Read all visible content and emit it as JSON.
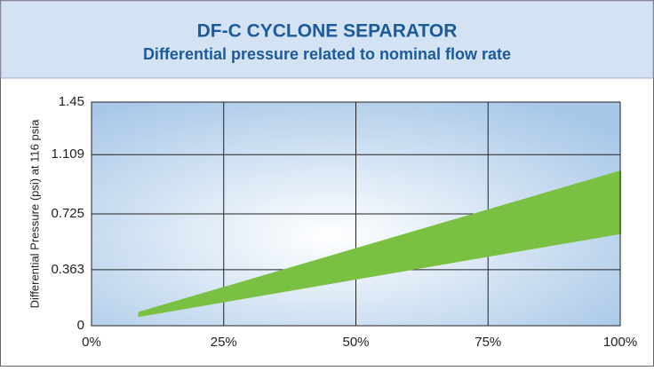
{
  "chart_data": {
    "type": "area_band",
    "title": "DF-C CYCLONE SEPARATOR",
    "subtitle": "Differential pressure related to nominal flow rate",
    "ylabel": "Differential Pressure (psi) at 116 psia",
    "x": [
      9,
      100
    ],
    "band": {
      "color": "#7ac143",
      "lower": [
        0.063,
        0.6
      ],
      "upper": [
        0.085,
        1.0
      ]
    },
    "xlim": [
      0,
      100
    ],
    "xticks": [
      {
        "value": 0,
        "label": "0%"
      },
      {
        "value": 25,
        "label": "25%"
      },
      {
        "value": 50,
        "label": "50%"
      },
      {
        "value": 75,
        "label": "75%"
      },
      {
        "value": 100,
        "label": "100%"
      }
    ],
    "ylim": [
      0,
      1.45
    ],
    "yticks": [
      0,
      0.363,
      0.725,
      1.109,
      1.45
    ],
    "grid": true
  }
}
